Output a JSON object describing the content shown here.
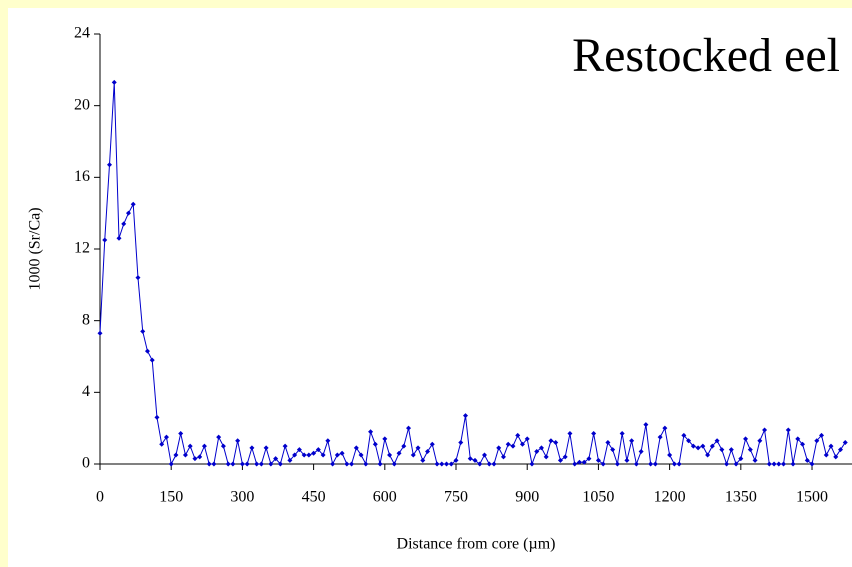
{
  "chart_data": {
    "type": "line",
    "title": "Restocked eel",
    "x_label": "Distance from core (µm)",
    "y_label": "1000 (Sr/Ca)",
    "x": [
      0,
      10,
      20,
      30,
      40,
      50,
      60,
      70,
      80,
      90,
      100,
      110,
      120,
      130,
      140,
      150,
      160,
      170,
      180,
      190,
      200,
      210,
      220,
      230,
      240,
      250,
      260,
      270,
      280,
      290,
      300,
      310,
      320,
      330,
      340,
      350,
      360,
      370,
      380,
      390,
      400,
      410,
      420,
      430,
      440,
      450,
      460,
      470,
      480,
      490,
      500,
      510,
      520,
      530,
      540,
      550,
      560,
      570,
      580,
      590,
      600,
      610,
      620,
      630,
      640,
      650,
      660,
      670,
      680,
      690,
      700,
      710,
      720,
      730,
      740,
      750,
      760,
      770,
      780,
      790,
      800,
      810,
      820,
      830,
      840,
      850,
      860,
      870,
      880,
      890,
      900,
      910,
      920,
      930,
      940,
      950,
      960,
      970,
      980,
      990,
      1000,
      1010,
      1020,
      1030,
      1040,
      1050,
      1060,
      1070,
      1080,
      1090,
      1100,
      1110,
      1120,
      1130,
      1140,
      1150,
      1160,
      1170,
      1180,
      1190,
      1200,
      1210,
      1220,
      1230,
      1240,
      1250,
      1260,
      1270,
      1280,
      1290,
      1300,
      1310,
      1320,
      1330,
      1340,
      1350,
      1360,
      1370,
      1380,
      1390,
      1400,
      1410,
      1420,
      1430,
      1440,
      1450,
      1460,
      1470,
      1480,
      1490,
      1500,
      1510,
      1520,
      1530,
      1540,
      1550,
      1560,
      1570
    ],
    "series": [
      {
        "name": "Sr/Ca",
        "color": "#0000cc",
        "values": [
          7.3,
          12.5,
          16.7,
          21.3,
          12.6,
          13.4,
          14.0,
          14.5,
          10.4,
          7.4,
          6.3,
          5.8,
          2.6,
          1.1,
          1.5,
          0,
          0.5,
          1.7,
          0.5,
          1.0,
          0.3,
          0.4,
          1.0,
          0,
          0,
          1.5,
          1.0,
          0,
          0,
          1.3,
          0,
          0,
          0.9,
          0,
          0,
          0.9,
          0,
          0.3,
          0,
          1.0,
          0.2,
          0.5,
          0.8,
          0.5,
          0.5,
          0.6,
          0.8,
          0.5,
          1.3,
          0,
          0.5,
          0.6,
          0,
          0,
          0.9,
          0.5,
          0,
          1.8,
          1.1,
          0,
          1.4,
          0.5,
          0,
          0.6,
          1.0,
          2.0,
          0.5,
          0.9,
          0.2,
          0.7,
          1.1,
          0,
          0,
          0,
          0,
          0.2,
          1.2,
          2.7,
          0.3,
          0.2,
          0,
          0.5,
          0,
          0,
          0.9,
          0.4,
          1.1,
          1.0,
          1.6,
          1.1,
          1.4,
          0,
          0.7,
          0.9,
          0.4,
          1.3,
          1.2,
          0.2,
          0.4,
          1.7,
          0,
          0.1,
          0.1,
          0.3,
          1.7,
          0.2,
          0,
          1.2,
          0.8,
          0,
          1.7,
          0.2,
          1.3,
          0,
          0.7,
          2.2,
          0,
          0,
          1.5,
          2.0,
          0.5,
          0,
          0,
          1.6,
          1.3,
          1.0,
          0.9,
          1.0,
          0.5,
          1.0,
          1.3,
          0.8,
          0,
          0.8,
          0,
          0.3,
          1.4,
          0.8,
          0.2,
          1.3,
          1.9,
          0,
          0,
          0,
          0,
          1.9,
          0,
          1.4,
          1.1,
          0.2,
          0,
          1.3,
          1.6,
          0.5,
          1.0,
          0.4,
          0.8,
          1.2
        ]
      }
    ],
    "xlim": [
      0,
      1580
    ],
    "ylim": [
      0,
      24
    ],
    "xticks": [
      0,
      150,
      300,
      450,
      600,
      750,
      900,
      1050,
      1200,
      1350,
      1500
    ],
    "yticks": [
      0,
      4,
      8,
      12,
      16,
      20,
      24
    ]
  }
}
